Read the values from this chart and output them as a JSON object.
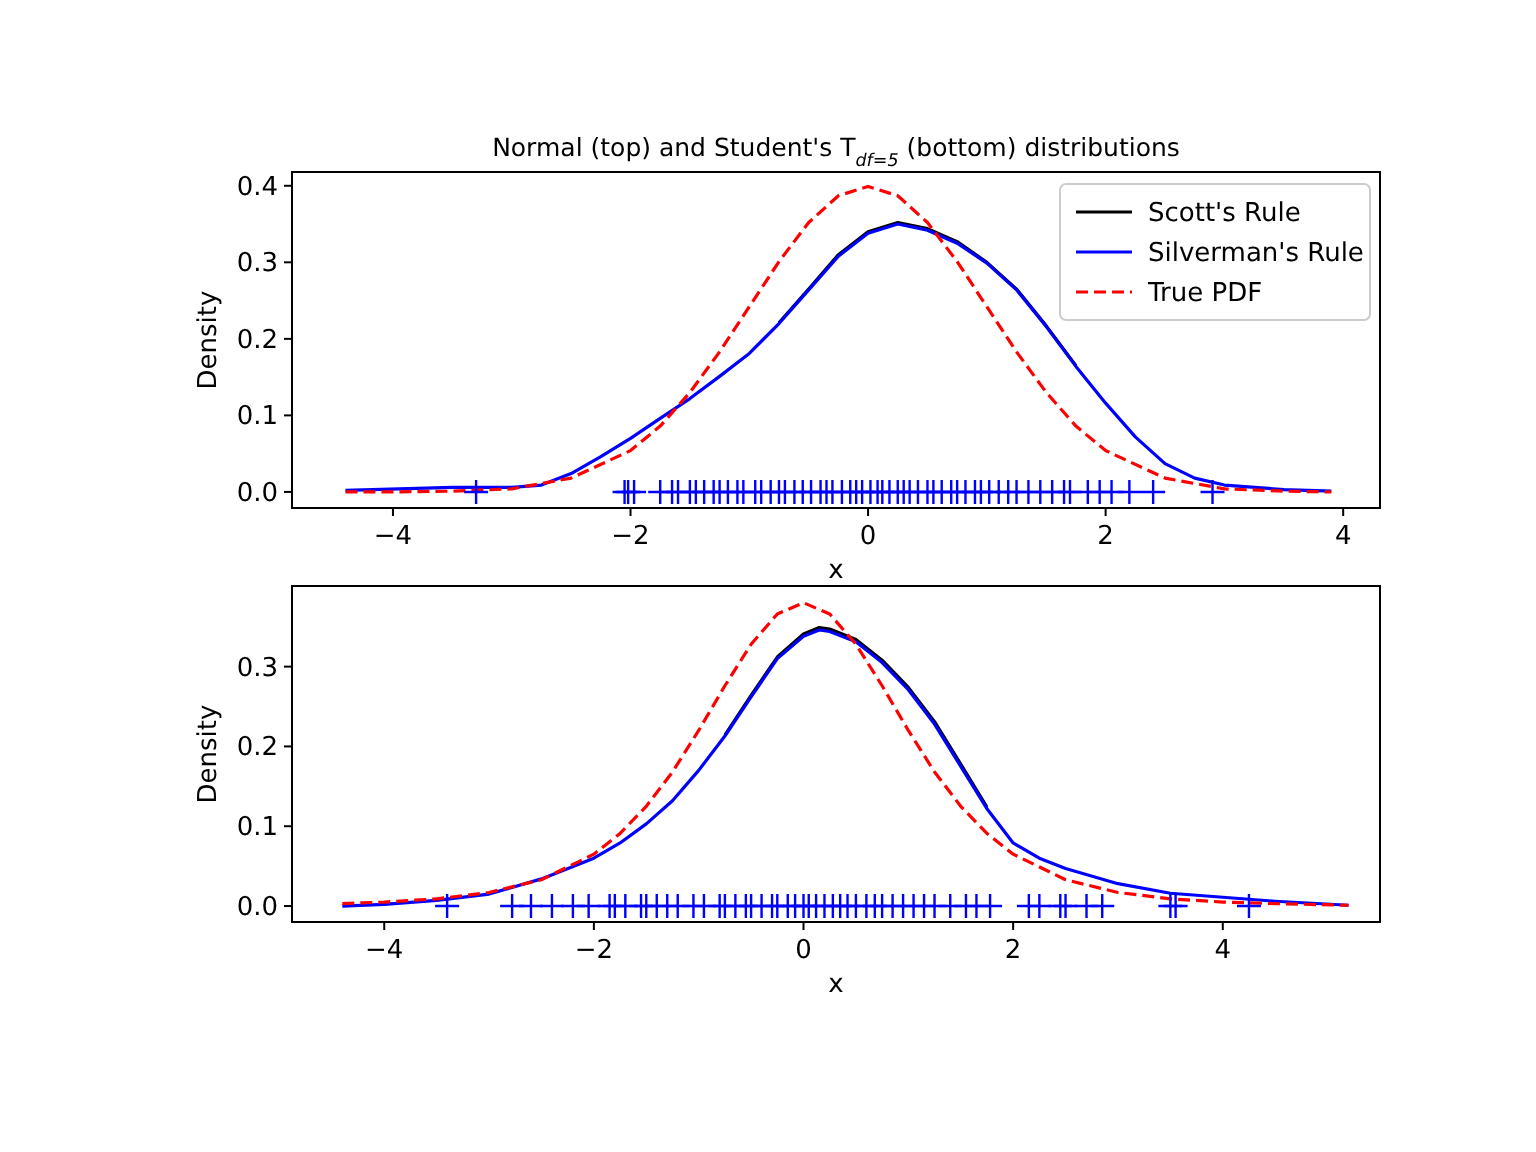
{
  "chart_data": [
    {
      "type": "line",
      "title": "Normal (top) and Student's T$_{df=5}$ (bottom) distributions",
      "xlabel": "x",
      "ylabel": "Density",
      "xlim": [
        -4.85,
        4.31
      ],
      "ylim": [
        -0.021,
        0.418
      ],
      "xticks": [
        -4,
        -2,
        0,
        2,
        4
      ],
      "yticks": [
        {
          "value": 0,
          "label": "0.0"
        },
        0.1,
        0.2,
        0.3,
        0.4
      ],
      "legend": "top right",
      "series": [
        {
          "name": "Scott's Rule",
          "color": "#000000",
          "line_style": "solid",
          "x": [
            -0.75,
            -0.5,
            -0.25,
            0,
            0.25,
            0.5,
            0.75,
            1,
            1.25,
            1.5,
            1.75
          ],
          "values": [
            0.221,
            0.265,
            0.31,
            0.34,
            0.352,
            0.344,
            0.327,
            0.3,
            0.265,
            0.217,
            0.165
          ]
        },
        {
          "name": "Silverman's Rule",
          "color": "#0000ff",
          "line_style": "solid",
          "x": [
            -4.4,
            -3.5,
            -3,
            -2.75,
            -2.5,
            -2.25,
            -2,
            -1.75,
            -1.5,
            -1.25,
            -1,
            -0.75,
            -0.5,
            -0.25,
            0,
            0.25,
            0.5,
            0.75,
            1,
            1.25,
            1.5,
            1.75,
            2,
            2.25,
            2.5,
            2.75,
            3,
            3.5,
            3.9
          ],
          "values": [
            0.002,
            0.006,
            0.006,
            0.009,
            0.024,
            0.046,
            0.07,
            0.096,
            0.122,
            0.151,
            0.181,
            0.22,
            0.264,
            0.308,
            0.338,
            0.35,
            0.342,
            0.325,
            0.299,
            0.264,
            0.216,
            0.164,
            0.116,
            0.072,
            0.037,
            0.018,
            0.009,
            0.003,
            0.001
          ]
        },
        {
          "name": "True PDF",
          "color": "#ff0000",
          "line_style": "dashed",
          "x": [
            -4.4,
            -4,
            -3.5,
            -3,
            -2.5,
            -2,
            -1.75,
            -1.5,
            -1.25,
            -1,
            -0.75,
            -0.5,
            -0.25,
            0,
            0.25,
            0.5,
            0.75,
            1,
            1.25,
            1.5,
            1.75,
            2,
            2.5,
            3,
            3.5,
            3.9
          ],
          "values": [
            0,
            0,
            0.001,
            0.004,
            0.018,
            0.054,
            0.086,
            0.13,
            0.183,
            0.242,
            0.301,
            0.352,
            0.387,
            0.399,
            0.387,
            0.352,
            0.301,
            0.242,
            0.183,
            0.13,
            0.086,
            0.054,
            0.018,
            0.004,
            0.001,
            0
          ]
        },
        {
          "type": "scatter",
          "color": "#0000ff",
          "marker": "cross",
          "x": [
            -3.3,
            -2.05,
            -2.02,
            -1.97,
            -1.75,
            -1.65,
            -1.6,
            -1.5,
            -1.45,
            -1.38,
            -1.3,
            -1.25,
            -1.18,
            -1.1,
            -1.05,
            -0.95,
            -0.9,
            -0.82,
            -0.75,
            -0.7,
            -0.62,
            -0.55,
            -0.48,
            -0.4,
            -0.35,
            -0.3,
            -0.22,
            -0.15,
            -0.1,
            -0.05,
            0.02,
            0.08,
            0.12,
            0.18,
            0.25,
            0.3,
            0.35,
            0.42,
            0.5,
            0.55,
            0.62,
            0.7,
            0.75,
            0.82,
            0.9,
            0.95,
            1.02,
            1.1,
            1.18,
            1.25,
            1.35,
            1.45,
            1.55,
            1.65,
            1.7,
            1.85,
            1.95,
            2.05,
            2.2,
            2.4,
            2.9
          ],
          "values": [
            0,
            0,
            0,
            0,
            0,
            0,
            0,
            0,
            0,
            0,
            0,
            0,
            0,
            0,
            0,
            0,
            0,
            0,
            0,
            0,
            0,
            0,
            0,
            0,
            0,
            0,
            0,
            0,
            0,
            0,
            0,
            0,
            0,
            0,
            0,
            0,
            0,
            0,
            0,
            0,
            0,
            0,
            0,
            0,
            0,
            0,
            0,
            0,
            0,
            0,
            0,
            0,
            0,
            0,
            0,
            0,
            0,
            0,
            0,
            0,
            0
          ]
        }
      ]
    },
    {
      "type": "line",
      "xlabel": "x",
      "ylabel": "Density",
      "xlim": [
        -4.88,
        5.5
      ],
      "ylim": [
        -0.02,
        0.401
      ],
      "xticks": [
        -4,
        -2,
        0,
        2,
        4
      ],
      "yticks": [
        {
          "value": 0,
          "label": "0.0"
        },
        0.1,
        0.2,
        0.3
      ],
      "series": [
        {
          "color": "#000000",
          "line_style": "solid",
          "x": [
            -0.75,
            -0.5,
            -0.25,
            0,
            0.15,
            0.25,
            0.5,
            0.75,
            1,
            1.25,
            1.5,
            1.75
          ],
          "values": [
            0.214,
            0.264,
            0.312,
            0.341,
            0.349,
            0.347,
            0.334,
            0.308,
            0.274,
            0.231,
            0.178,
            0.124
          ]
        },
        {
          "color": "#0000ff",
          "line_style": "solid",
          "x": [
            -4.4,
            -4,
            -3.5,
            -3,
            -2.5,
            -2,
            -1.75,
            -1.5,
            -1.25,
            -1,
            -0.75,
            -0.5,
            -0.25,
            0,
            0.15,
            0.25,
            0.5,
            0.75,
            1,
            1.25,
            1.5,
            1.75,
            2,
            2.25,
            2.5,
            3,
            3.5,
            4,
            4.5,
            5.2
          ],
          "values": [
            0,
            0.002,
            0.007,
            0.015,
            0.034,
            0.06,
            0.079,
            0.103,
            0.132,
            0.17,
            0.213,
            0.262,
            0.31,
            0.338,
            0.346,
            0.344,
            0.331,
            0.305,
            0.271,
            0.228,
            0.175,
            0.122,
            0.079,
            0.06,
            0.047,
            0.028,
            0.016,
            0.011,
            0.006,
            0.001
          ]
        },
        {
          "color": "#ff0000",
          "line_style": "dashed",
          "x": [
            -4.4,
            -4,
            -3.5,
            -3,
            -2.5,
            -2,
            -1.75,
            -1.5,
            -1.25,
            -1,
            -0.75,
            -0.5,
            -0.25,
            0,
            0.25,
            0.5,
            0.75,
            1,
            1.25,
            1.5,
            1.75,
            2,
            2.5,
            3,
            3.5,
            4,
            4.5,
            5.2
          ],
          "values": [
            0.003,
            0.005,
            0.009,
            0.017,
            0.033,
            0.065,
            0.091,
            0.125,
            0.168,
            0.22,
            0.276,
            0.328,
            0.366,
            0.38,
            0.366,
            0.328,
            0.276,
            0.22,
            0.168,
            0.125,
            0.091,
            0.065,
            0.033,
            0.017,
            0.009,
            0.005,
            0.003,
            0.001
          ]
        },
        {
          "type": "scatter",
          "color": "#0000ff",
          "marker": "cross",
          "x": [
            -3.4,
            -2.78,
            -2.6,
            -2.4,
            -2.2,
            -2.05,
            -1.85,
            -1.8,
            -1.7,
            -1.55,
            -1.5,
            -1.4,
            -1.3,
            -1.2,
            -1.05,
            -0.95,
            -0.8,
            -0.75,
            -0.65,
            -0.55,
            -0.5,
            -0.4,
            -0.3,
            -0.25,
            -0.15,
            -0.08,
            0,
            0.05,
            0.12,
            0.2,
            0.28,
            0.35,
            0.42,
            0.5,
            0.6,
            0.68,
            0.75,
            0.85,
            0.95,
            1.05,
            1.15,
            1.25,
            1.4,
            1.55,
            1.65,
            1.78,
            2.15,
            2.25,
            2.45,
            2.5,
            2.7,
            2.85,
            3.5,
            3.55,
            4.25
          ],
          "values": [
            0,
            0,
            0,
            0,
            0,
            0,
            0,
            0,
            0,
            0,
            0,
            0,
            0,
            0,
            0,
            0,
            0,
            0,
            0,
            0,
            0,
            0,
            0,
            0,
            0,
            0,
            0,
            0,
            0,
            0,
            0,
            0,
            0,
            0,
            0,
            0,
            0,
            0,
            0,
            0,
            0,
            0,
            0,
            0,
            0,
            0,
            0,
            0,
            0,
            0,
            0,
            0,
            0,
            0,
            0
          ]
        }
      ]
    }
  ]
}
